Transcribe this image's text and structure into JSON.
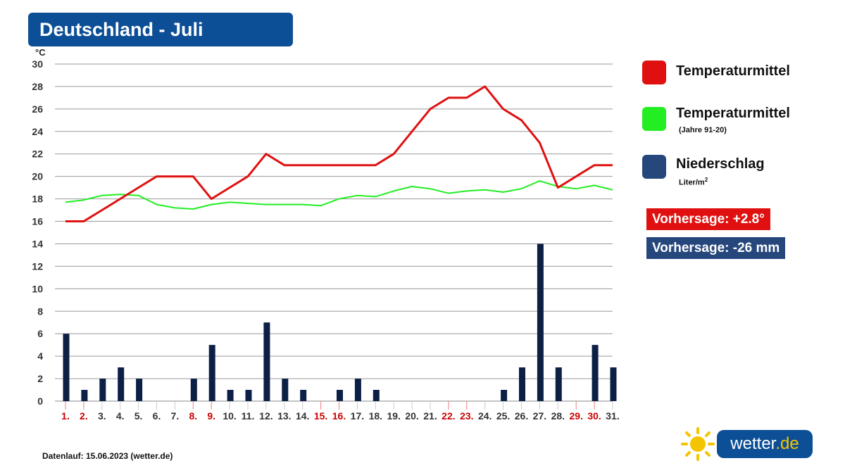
{
  "header": {
    "title": "Deutschland - Juli"
  },
  "axis": {
    "unit": "°C"
  },
  "legend": {
    "temp": {
      "label": "Temperaturmittel",
      "color": "#e01010"
    },
    "normal": {
      "label": "Temperaturmittel",
      "sub": "(Jahre 91-20)",
      "color": "#22ee22"
    },
    "precip": {
      "label": "Niederschlag",
      "sub": "Liter/m",
      "sub_sup": "2",
      "color": "#26477c"
    }
  },
  "badges": {
    "temp_forecast": {
      "text": "Vorhersage: +2.8°",
      "color": "#e01010"
    },
    "precip_forecast": {
      "text": "Vorhersage: -26 mm",
      "color": "#26477c"
    }
  },
  "footer": {
    "text": "Datenlauf: 15.06.2023 (wetter.de)"
  },
  "logo": {
    "name": "sun-logo-icon",
    "text_main": "wetter",
    "text_suffix": ".de"
  },
  "chart_data": {
    "type": "line",
    "x": [
      "1.",
      "2.",
      "3.",
      "4.",
      "5.",
      "6.",
      "7.",
      "8.",
      "9.",
      "10.",
      "11.",
      "12.",
      "13.",
      "14.",
      "15.",
      "16.",
      "17.",
      "18.",
      "19.",
      "20.",
      "21.",
      "22.",
      "23.",
      "24.",
      "25.",
      "26.",
      "27.",
      "28.",
      "29.",
      "30.",
      "31."
    ],
    "weekend_days": [
      "1.",
      "2.",
      "8.",
      "9.",
      "15.",
      "16.",
      "22.",
      "23.",
      "29.",
      "30."
    ],
    "ylim": [
      0,
      30
    ],
    "yticks": [
      0,
      2,
      4,
      6,
      8,
      10,
      12,
      14,
      16,
      18,
      20,
      22,
      24,
      26,
      28,
      30
    ],
    "grid": true,
    "series": [
      {
        "name": "Temperaturmittel",
        "kind": "line",
        "color": "#e01010",
        "values": [
          16,
          16,
          17,
          18,
          19,
          20,
          20,
          20,
          18,
          19,
          20,
          22,
          21,
          21,
          21,
          21,
          21,
          21,
          22,
          24,
          26,
          27,
          27,
          28,
          26,
          25,
          23,
          19,
          20,
          21,
          21
        ]
      },
      {
        "name": "Temperaturmittel (Jahre 91-20)",
        "kind": "line",
        "color": "#22ee22",
        "values": [
          17.7,
          17.9,
          18.3,
          18.4,
          18.3,
          17.5,
          17.2,
          17.1,
          17.5,
          17.7,
          17.6,
          17.5,
          17.5,
          17.5,
          17.4,
          18.0,
          18.3,
          18.2,
          18.7,
          19.1,
          18.9,
          18.5,
          18.7,
          18.8,
          18.6,
          18.9,
          19.6,
          19.1,
          18.9,
          19.2,
          18.8
        ]
      },
      {
        "name": "Niederschlag",
        "kind": "bar",
        "color": "#0c1f45",
        "values": [
          6,
          1,
          2,
          3,
          2,
          0,
          0,
          2,
          5,
          1,
          1,
          7,
          2,
          1,
          0,
          1,
          2,
          1,
          0,
          0,
          0,
          0,
          0,
          0,
          1,
          3,
          14,
          3,
          0,
          5,
          3
        ]
      }
    ]
  }
}
